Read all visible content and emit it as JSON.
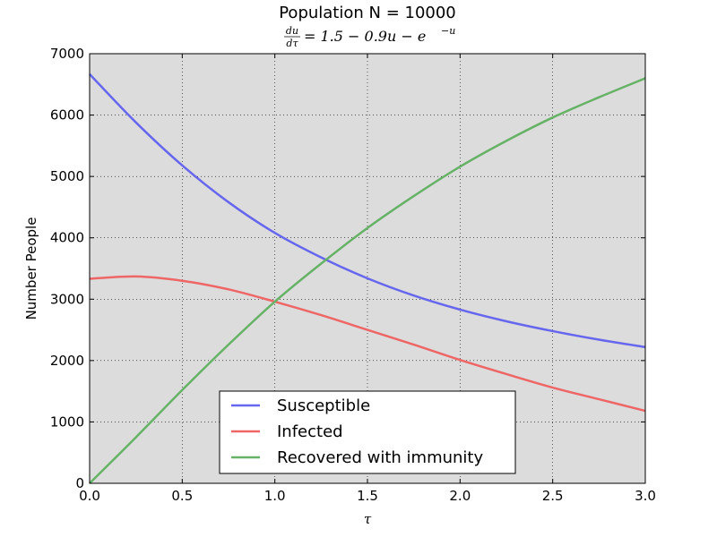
{
  "chart_data": {
    "type": "line",
    "title": "Population N = 10000",
    "subtitle": {
      "lhs_num": "du",
      "lhs_den": "dτ",
      "rhs": "= 1.5 − 0.9u − e",
      "rhs_exp": "−u"
    },
    "xlabel": "τ",
    "ylabel": "Number People",
    "xlim": [
      0,
      3
    ],
    "ylim": [
      0,
      7000
    ],
    "x_ticks": [
      "0.0",
      "0.5",
      "1.0",
      "1.5",
      "2.0",
      "2.5",
      "3.0"
    ],
    "y_ticks": [
      "0",
      "1000",
      "2000",
      "3000",
      "4000",
      "5000",
      "6000",
      "7000"
    ],
    "grid": true,
    "legend_position": "bottom-center",
    "x": [
      0.0,
      0.25,
      0.5,
      0.75,
      1.0,
      1.25,
      1.5,
      1.75,
      2.0,
      2.25,
      2.5,
      2.75,
      3.0
    ],
    "series": [
      {
        "name": "Susceptible",
        "color": "#6666ee",
        "values": [
          6667,
          5880,
          5180,
          4580,
          4080,
          3680,
          3340,
          3060,
          2830,
          2640,
          2480,
          2340,
          2220
        ]
      },
      {
        "name": "Infected",
        "color": "#ee6666",
        "values": [
          3333,
          3370,
          3300,
          3160,
          2960,
          2740,
          2500,
          2260,
          2010,
          1780,
          1560,
          1370,
          1180
        ]
      },
      {
        "name": "Recovered with immunity",
        "color": "#66b266",
        "values": [
          0,
          750,
          1520,
          2260,
          2960,
          3580,
          4160,
          4680,
          5160,
          5580,
          5960,
          6290,
          6600
        ]
      }
    ]
  }
}
